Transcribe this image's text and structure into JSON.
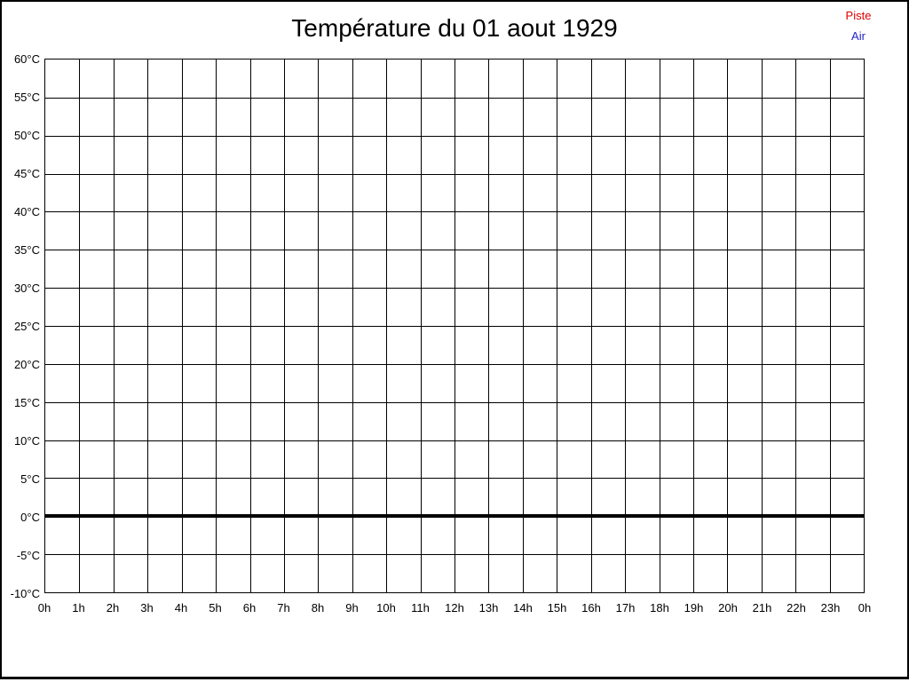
{
  "page": {
    "background": "#ffffff",
    "frame_color": "#000000"
  },
  "legend": {
    "position": "top-right",
    "items": [
      {
        "label": "Piste",
        "color": "#dd0000"
      },
      {
        "label": "Air",
        "color": "#2222cc"
      }
    ]
  },
  "chart_data": {
    "type": "line",
    "title": "Température du 01 aout 1929",
    "xlabel": "",
    "ylabel": "",
    "x_tick_labels": [
      "0h",
      "1h",
      "2h",
      "3h",
      "4h",
      "5h",
      "6h",
      "7h",
      "8h",
      "9h",
      "10h",
      "11h",
      "12h",
      "13h",
      "14h",
      "15h",
      "16h",
      "17h",
      "18h",
      "19h",
      "20h",
      "21h",
      "22h",
      "23h",
      "0h"
    ],
    "y_tick_labels": [
      "60°C",
      "55°C",
      "50°C",
      "45°C",
      "40°C",
      "35°C",
      "30°C",
      "25°C",
      "20°C",
      "15°C",
      "10°C",
      "5°C",
      "0°C",
      "-5°C",
      "-10°C"
    ],
    "ylim": [
      -10,
      60
    ],
    "y_step": 5,
    "grid": true,
    "grid_color": "#000000",
    "zero_line": {
      "value": 0,
      "color": "#000000",
      "thickness_px": 4
    },
    "legend_position": "top-right",
    "series": [
      {
        "name": "Piste",
        "color": "#dd0000",
        "values": []
      },
      {
        "name": "Air",
        "color": "#2222cc",
        "values": []
      }
    ]
  }
}
